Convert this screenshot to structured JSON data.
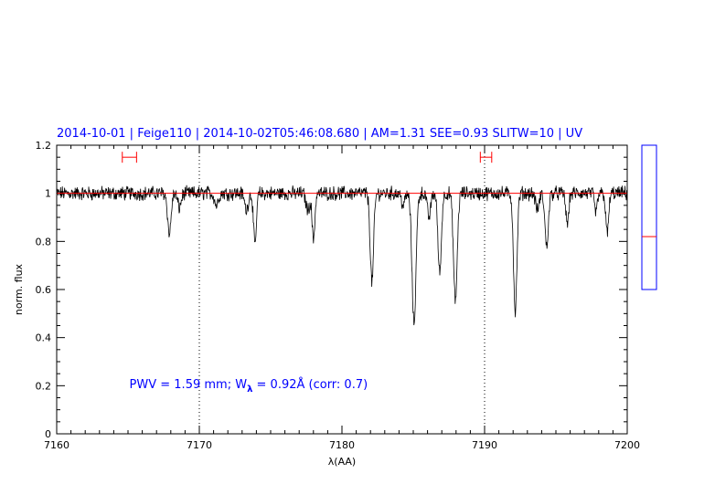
{
  "chart_data": {
    "type": "line",
    "title": "2014-10-01 | Feige110 | 2014-10-02T05:46:08.680 | AM=1.31 SEE=0.93 SLITW=10 | UV",
    "xlabel": "λ(AA)",
    "ylabel": "norm. flux",
    "xlim": [
      7160,
      7200
    ],
    "ylim": [
      0,
      1.2
    ],
    "x_ticks": [
      {
        "value": 7160,
        "label": "7160"
      },
      {
        "value": 7170,
        "label": "7170"
      },
      {
        "value": 7180,
        "label": "7180"
      },
      {
        "value": 7190,
        "label": "7190"
      },
      {
        "value": 7200,
        "label": "7200"
      }
    ],
    "y_ticks": [
      {
        "value": 0,
        "label": "0"
      },
      {
        "value": 0.2,
        "label": "0.2"
      },
      {
        "value": 0.4,
        "label": "0.4"
      },
      {
        "value": 0.6,
        "label": "0.6"
      },
      {
        "value": 0.8,
        "label": "0.8"
      },
      {
        "value": 1.0,
        "label": "1"
      },
      {
        "value": 1.2,
        "label": "1.2"
      }
    ],
    "reference_line": {
      "y": 1.0,
      "color": "#ff0000"
    },
    "vertical_dotted_lines": [
      7170,
      7190
    ],
    "continuum_windows": [
      {
        "x_start": 7164.6,
        "x_end": 7165.6,
        "y": 1.15
      },
      {
        "x_start": 7189.7,
        "x_end": 7190.5,
        "y": 1.15
      }
    ],
    "absorption_lines": [
      {
        "center": 7167.9,
        "depth": 0.17,
        "width": 0.12
      },
      {
        "center": 7168.6,
        "depth": 0.06,
        "width": 0.12
      },
      {
        "center": 7171.2,
        "depth": 0.05,
        "width": 0.12
      },
      {
        "center": 7173.3,
        "depth": 0.07,
        "width": 0.12
      },
      {
        "center": 7173.9,
        "depth": 0.22,
        "width": 0.1
      },
      {
        "center": 7177.6,
        "depth": 0.07,
        "width": 0.12
      },
      {
        "center": 7178.0,
        "depth": 0.19,
        "width": 0.1
      },
      {
        "center": 7182.1,
        "depth": 0.37,
        "width": 0.12
      },
      {
        "center": 7184.3,
        "depth": 0.05,
        "width": 0.12
      },
      {
        "center": 7185.05,
        "depth": 0.54,
        "width": 0.14
      },
      {
        "center": 7186.1,
        "depth": 0.1,
        "width": 0.12
      },
      {
        "center": 7186.85,
        "depth": 0.33,
        "width": 0.12
      },
      {
        "center": 7187.95,
        "depth": 0.45,
        "width": 0.13
      },
      {
        "center": 7192.15,
        "depth": 0.49,
        "width": 0.12
      },
      {
        "center": 7193.7,
        "depth": 0.07,
        "width": 0.12
      },
      {
        "center": 7194.35,
        "depth": 0.22,
        "width": 0.12
      },
      {
        "center": 7195.8,
        "depth": 0.13,
        "width": 0.1
      },
      {
        "center": 7197.8,
        "depth": 0.08,
        "width": 0.1
      },
      {
        "center": 7198.6,
        "depth": 0.17,
        "width": 0.1
      }
    ],
    "noise_amplitude": 0.025,
    "annotation": {
      "prefix": "PWV  =  1.59  mm;  W",
      "subscript": "λ",
      "suffix": "  =  0.92Å  (corr: 0.7)",
      "x": 7165.1,
      "y": 0.19
    },
    "side_box": {
      "y_min": 0.6,
      "y_max": 1.2,
      "marker_y": 0.82
    }
  }
}
